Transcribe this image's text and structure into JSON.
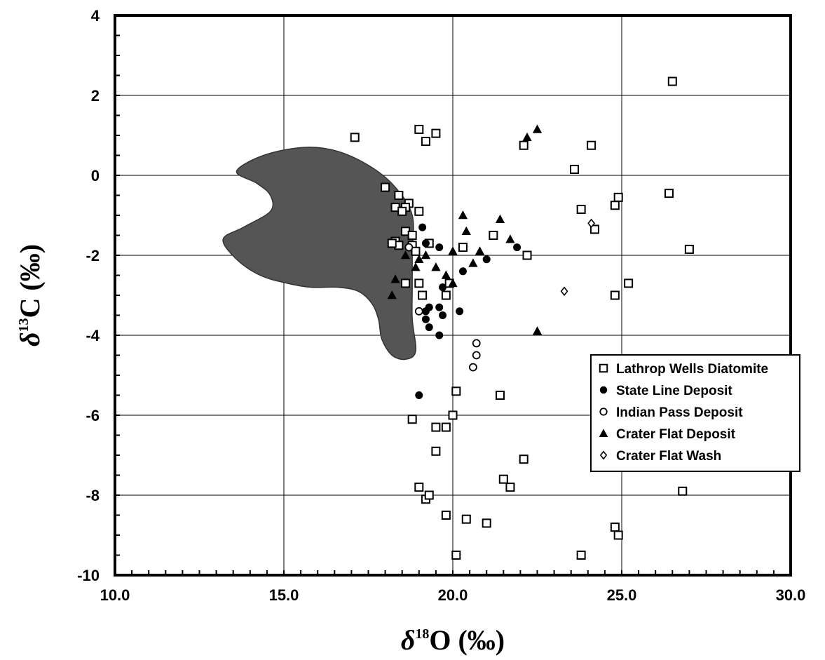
{
  "chart_data": {
    "type": "scatter",
    "title": "",
    "xlabel": "δ18O (‰)",
    "ylabel": "δ13C (‰)",
    "xlabel_parts": {
      "delta": "δ",
      "sup": "18",
      "element": "O",
      "unit": "(‰)"
    },
    "ylabel_parts": {
      "delta": "δ",
      "sup": "13",
      "element": "C",
      "unit": "(‰)"
    },
    "xlim": [
      10,
      30
    ],
    "ylim": [
      -10,
      4
    ],
    "x_ticks": [
      10,
      15,
      20,
      25,
      30
    ],
    "x_tick_labels": [
      "10.0",
      "15.0",
      "20.0",
      "25.0",
      "30.0"
    ],
    "y_ticks": [
      -10,
      -8,
      -6,
      -4,
      -2,
      0,
      2,
      4
    ],
    "y_tick_labels": [
      "-10",
      "-8",
      "-6",
      "-4",
      "-2",
      "0",
      "2",
      "4"
    ],
    "grid": true,
    "legend_position": "right",
    "shaded_region": {
      "color": "#555555",
      "outline": [
        [
          13.6,
          0.1
        ],
        [
          14.4,
          0.5
        ],
        [
          15.6,
          0.7
        ],
        [
          16.6,
          0.6
        ],
        [
          17.6,
          0.2
        ],
        [
          18.3,
          -0.3
        ],
        [
          18.8,
          -1.0
        ],
        [
          18.8,
          -2.0
        ],
        [
          18.8,
          -2.8
        ],
        [
          18.8,
          -3.6
        ],
        [
          18.9,
          -4.4
        ],
        [
          18.6,
          -4.6
        ],
        [
          18.2,
          -4.5
        ],
        [
          17.9,
          -4.1
        ],
        [
          17.8,
          -3.6
        ],
        [
          17.6,
          -3.2
        ],
        [
          17.2,
          -2.9
        ],
        [
          16.6,
          -2.8
        ],
        [
          15.8,
          -2.8
        ],
        [
          15.1,
          -2.7
        ],
        [
          14.3,
          -2.5
        ],
        [
          13.6,
          -2.1
        ],
        [
          13.2,
          -1.6
        ],
        [
          13.8,
          -1.3
        ],
        [
          14.6,
          -0.9
        ],
        [
          14.6,
          -0.5
        ],
        [
          14.2,
          -0.2
        ]
      ]
    },
    "series": [
      {
        "name": "Lathrop Wells Diatomite",
        "marker": "open-square",
        "points": [
          [
            17.1,
            0.95
          ],
          [
            18.0,
            -0.3
          ],
          [
            18.4,
            -0.5
          ],
          [
            18.7,
            -0.7
          ],
          [
            18.3,
            -0.8
          ],
          [
            18.6,
            -0.8
          ],
          [
            18.5,
            -0.9
          ],
          [
            19.0,
            -0.9
          ],
          [
            18.6,
            -1.4
          ],
          [
            18.8,
            -1.5
          ],
          [
            18.3,
            -1.65
          ],
          [
            18.4,
            -1.75
          ],
          [
            18.2,
            -1.7
          ],
          [
            18.8,
            -1.75
          ],
          [
            19.3,
            -1.7
          ],
          [
            18.9,
            -1.9
          ],
          [
            18.6,
            -2.7
          ],
          [
            19.0,
            -2.7
          ],
          [
            19.1,
            -3.0
          ],
          [
            19.8,
            -3.0
          ],
          [
            19.9,
            -2.7
          ],
          [
            20.3,
            -1.8
          ],
          [
            21.2,
            -1.5
          ],
          [
            22.2,
            -2.0
          ],
          [
            19.0,
            1.15
          ],
          [
            19.2,
            0.85
          ],
          [
            19.5,
            1.05
          ],
          [
            22.1,
            0.75
          ],
          [
            24.1,
            0.75
          ],
          [
            23.6,
            0.15
          ],
          [
            23.8,
            -0.85
          ],
          [
            24.2,
            -1.35
          ],
          [
            24.8,
            -0.75
          ],
          [
            24.9,
            -0.55
          ],
          [
            26.4,
            -0.45
          ],
          [
            26.5,
            2.35
          ],
          [
            27.0,
            -1.85
          ],
          [
            25.2,
            -2.7
          ],
          [
            24.8,
            -3.0
          ],
          [
            20.1,
            -5.4
          ],
          [
            21.4,
            -5.5
          ],
          [
            18.8,
            -6.1
          ],
          [
            20.0,
            -6.0
          ],
          [
            19.5,
            -6.3
          ],
          [
            19.8,
            -6.3
          ],
          [
            19.5,
            -6.9
          ],
          [
            22.1,
            -7.1
          ],
          [
            21.5,
            -7.6
          ],
          [
            21.7,
            -7.8
          ],
          [
            19.0,
            -7.8
          ],
          [
            19.2,
            -8.1
          ],
          [
            19.3,
            -8.0
          ],
          [
            19.8,
            -8.5
          ],
          [
            20.4,
            -8.6
          ],
          [
            21.0,
            -8.7
          ],
          [
            24.8,
            -8.8
          ],
          [
            24.9,
            -9.0
          ],
          [
            26.8,
            -7.9
          ],
          [
            20.1,
            -9.5
          ],
          [
            23.8,
            -9.5
          ]
        ]
      },
      {
        "name": "State Line Deposit",
        "marker": "filled-circle",
        "points": [
          [
            19.1,
            -1.3
          ],
          [
            19.2,
            -1.7
          ],
          [
            19.6,
            -1.8
          ],
          [
            20.3,
            -2.4
          ],
          [
            21.0,
            -2.1
          ],
          [
            21.9,
            -1.8
          ],
          [
            19.7,
            -2.8
          ],
          [
            19.3,
            -3.3
          ],
          [
            19.2,
            -3.4
          ],
          [
            19.6,
            -3.3
          ],
          [
            19.7,
            -3.5
          ],
          [
            20.2,
            -3.4
          ],
          [
            19.2,
            -3.6
          ],
          [
            19.3,
            -3.8
          ],
          [
            19.6,
            -4.0
          ],
          [
            19.0,
            -5.5
          ]
        ]
      },
      {
        "name": "Indian Pass Deposit",
        "marker": "open-circle",
        "points": [
          [
            18.7,
            -1.8
          ],
          [
            19.0,
            -3.4
          ],
          [
            20.7,
            -4.2
          ],
          [
            20.7,
            -4.5
          ],
          [
            20.6,
            -4.8
          ]
        ]
      },
      {
        "name": "Crater Flat Deposit",
        "marker": "filled-triangle",
        "points": [
          [
            22.2,
            0.95
          ],
          [
            22.5,
            1.15
          ],
          [
            20.3,
            -1.0
          ],
          [
            21.4,
            -1.1
          ],
          [
            20.4,
            -1.4
          ],
          [
            21.7,
            -1.6
          ],
          [
            20.0,
            -1.9
          ],
          [
            20.8,
            -1.9
          ],
          [
            19.0,
            -2.1
          ],
          [
            19.2,
            -2.0
          ],
          [
            18.9,
            -2.3
          ],
          [
            19.5,
            -2.3
          ],
          [
            20.6,
            -2.2
          ],
          [
            19.8,
            -2.5
          ],
          [
            20.0,
            -2.7
          ],
          [
            22.5,
            -3.9
          ],
          [
            18.6,
            -2.0
          ],
          [
            18.3,
            -2.6
          ],
          [
            18.2,
            -3.0
          ]
        ]
      },
      {
        "name": "Crater Flat Wash",
        "marker": "open-diamond",
        "points": [
          [
            24.1,
            -1.2
          ],
          [
            23.3,
            -2.9
          ]
        ]
      }
    ]
  }
}
